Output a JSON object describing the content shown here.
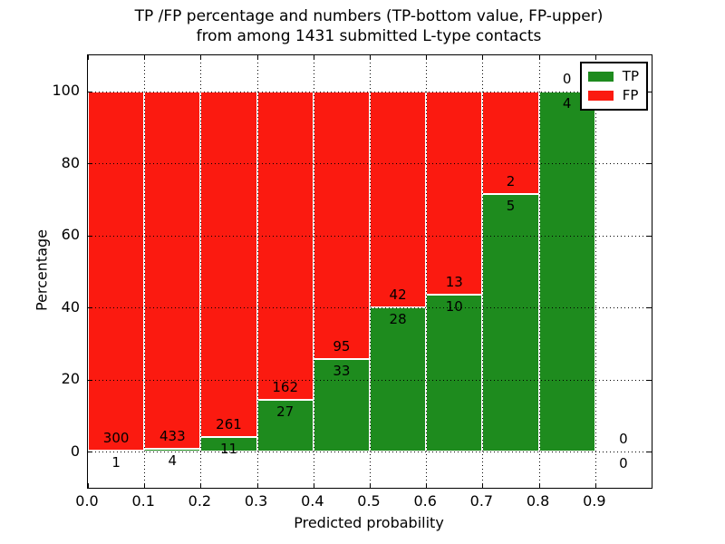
{
  "title": {
    "line1": "TP /FP percentage and numbers (TP-bottom value, FP-upper)",
    "line2": "from among 1431 submitted L-type contacts"
  },
  "chart_data": {
    "type": "bar",
    "stacked": true,
    "normalized_to_percent": true,
    "total_contacts": 1431,
    "bin_width": 0.1,
    "bins_start": [
      0.0,
      0.1,
      0.2,
      0.3,
      0.4,
      0.5,
      0.6,
      0.7,
      0.8,
      0.9
    ],
    "series": [
      {
        "name": "TP",
        "color": "#1e8b1e",
        "values": [
          1,
          4,
          11,
          27,
          33,
          28,
          10,
          5,
          4,
          0
        ]
      },
      {
        "name": "FP",
        "color": "#fb1a10",
        "values": [
          300,
          433,
          261,
          162,
          95,
          42,
          13,
          2,
          0,
          0
        ]
      }
    ],
    "label_note": "FP count shown above TP/FP boundary, TP count below",
    "xlabel": "Predicted probability",
    "ylabel": "Percentage",
    "xlim": [
      0.0,
      1.0
    ],
    "ylim": [
      -10,
      110
    ],
    "xticks": [
      "0.0",
      "0.1",
      "0.2",
      "0.3",
      "0.4",
      "0.5",
      "0.6",
      "0.7",
      "0.8",
      "0.9"
    ],
    "yticks": [
      "0",
      "20",
      "40",
      "60",
      "80",
      "100"
    ],
    "grid": "dotted",
    "bar_edge_color": "#ffffff",
    "legend": {
      "position": "upper right",
      "entries": [
        {
          "label": "TP",
          "color": "#1e8b1e"
        },
        {
          "label": "FP",
          "color": "#fb1a10"
        }
      ]
    }
  }
}
